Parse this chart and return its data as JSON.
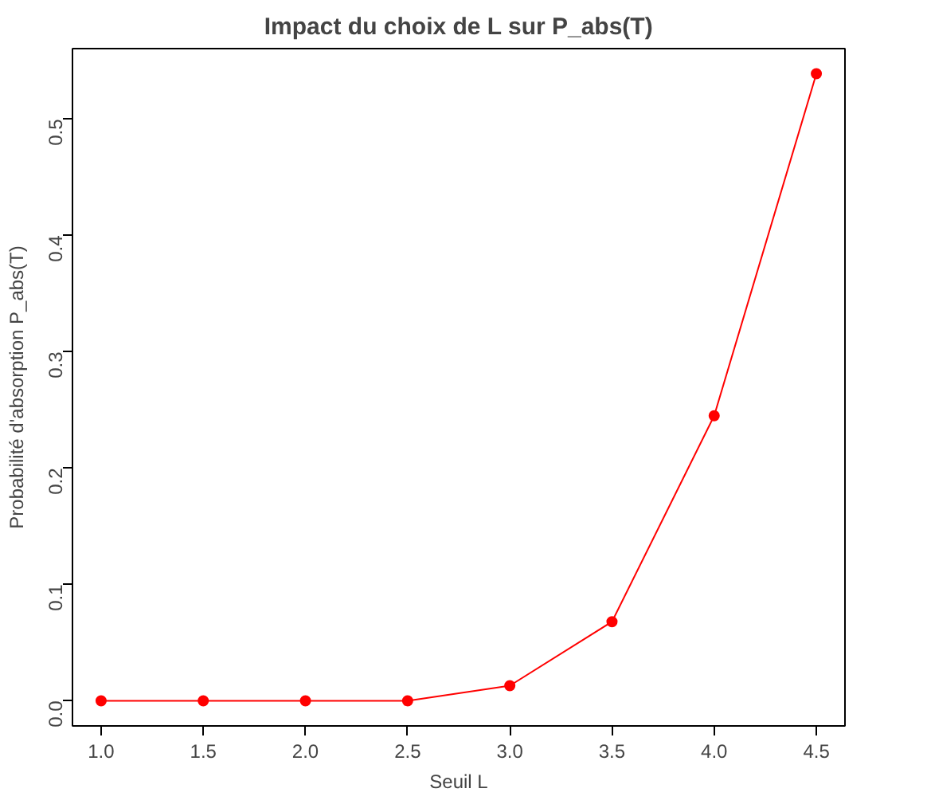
{
  "chart_data": {
    "type": "line",
    "title": "Impact du choix de L sur P_abs(T)",
    "xlabel": "Seuil L",
    "ylabel": "Probabilité d'absorption P_abs(T)",
    "x": [
      1.0,
      1.5,
      2.0,
      2.5,
      3.0,
      3.5,
      4.0,
      4.5
    ],
    "series": [
      {
        "color": "#ff0000",
        "values": [
          0,
          0,
          0,
          0,
          0.013,
          0.068,
          0.245,
          0.539
        ]
      }
    ],
    "xlim": [
      0.86,
      4.64
    ],
    "ylim": [
      -0.0216,
      0.5606
    ],
    "xticks": [
      {
        "value": 1.0,
        "label": "1.0"
      },
      {
        "value": 1.5,
        "label": "1.5"
      },
      {
        "value": 2.0,
        "label": "2.0"
      },
      {
        "value": 2.5,
        "label": "2.5"
      },
      {
        "value": 3.0,
        "label": "3.0"
      },
      {
        "value": 3.5,
        "label": "3.5"
      },
      {
        "value": 4.0,
        "label": "4.0"
      },
      {
        "value": 4.5,
        "label": "4.5"
      }
    ],
    "yticks": [
      {
        "value": 0,
        "label": "0.0"
      },
      {
        "value": 0.1,
        "label": "0.1"
      },
      {
        "value": 0.2,
        "label": "0.2"
      },
      {
        "value": 0.3,
        "label": "0.3"
      },
      {
        "value": 0.4,
        "label": "0.4"
      },
      {
        "value": 0.5,
        "label": "0.5"
      }
    ],
    "marker": "circle",
    "line_style": "solid",
    "grid": false
  }
}
